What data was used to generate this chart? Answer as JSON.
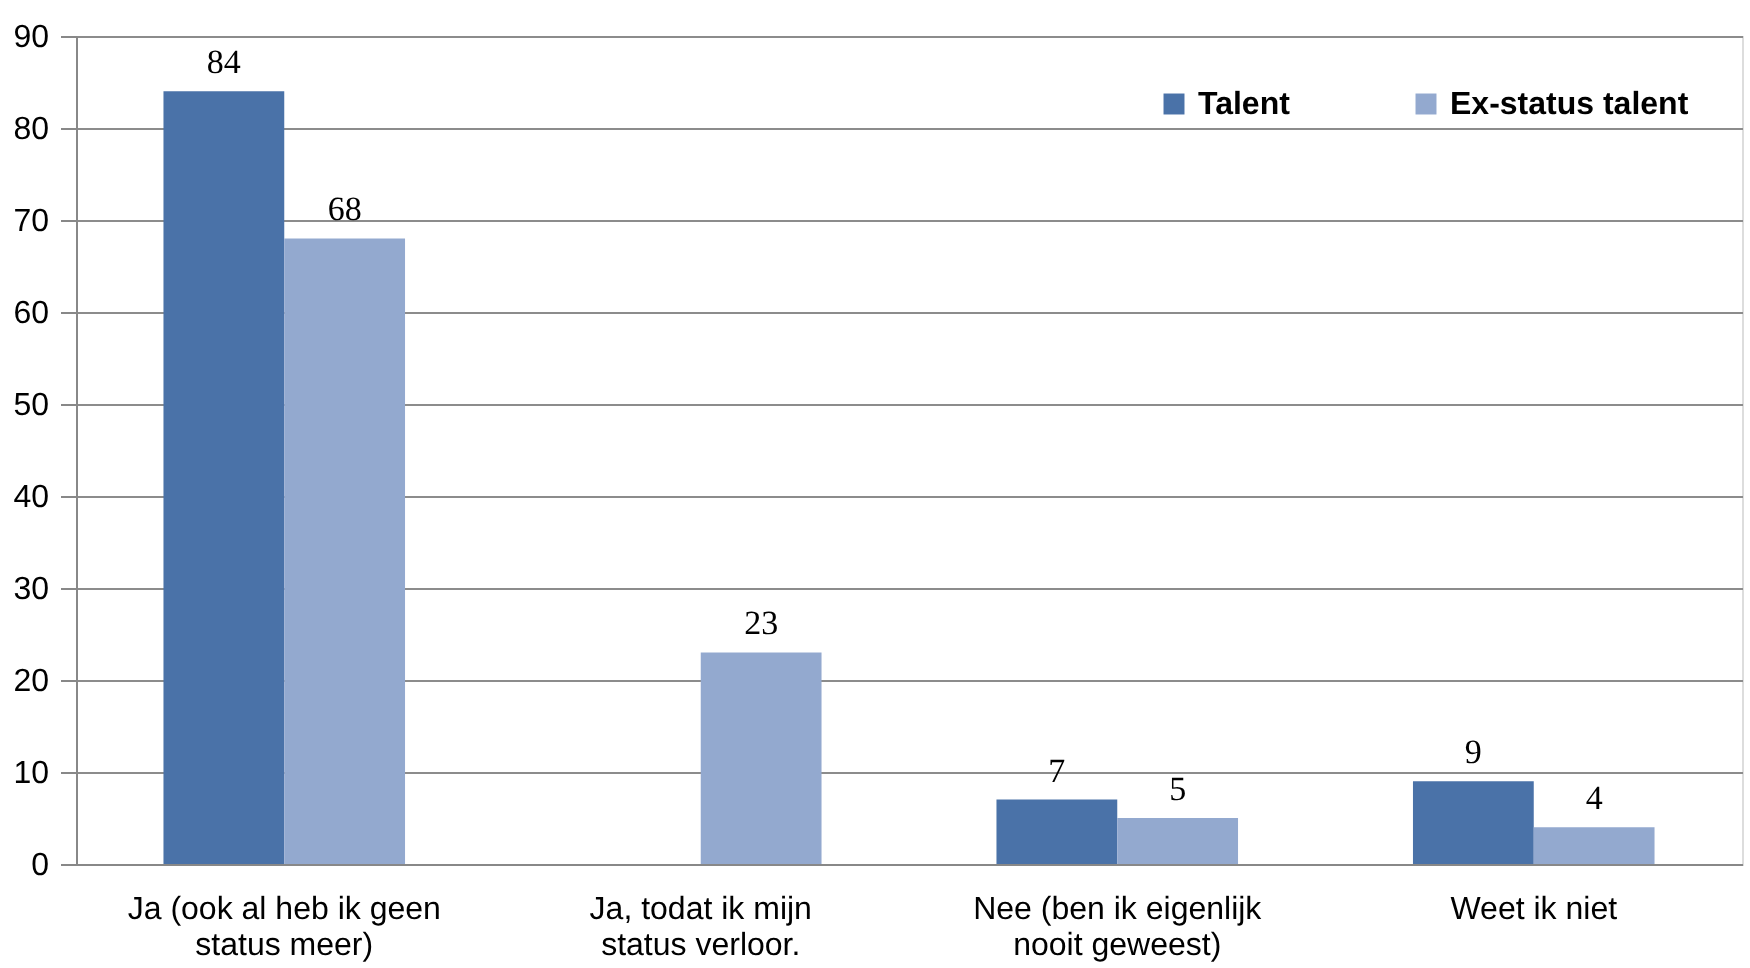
{
  "chart_data": {
    "type": "bar",
    "categories": [
      "Ja (ook al heb ik geen status meer)",
      "Ja, todat ik mijn status verloor.",
      "Nee (ben ik eigenlijk nooit geweest)",
      "Weet ik niet"
    ],
    "series": [
      {
        "name": "Talent",
        "color": "#4a72a8",
        "values": [
          84,
          null,
          7,
          9
        ]
      },
      {
        "name": "Ex-status talent",
        "color": "#93a9cf",
        "values": [
          68,
          23,
          5,
          4
        ]
      }
    ],
    "ylim": [
      0,
      90
    ],
    "yticks": [
      0,
      10,
      20,
      30,
      40,
      50,
      60,
      70,
      80,
      90
    ],
    "grid": "y",
    "legend": "top right",
    "data_labels": true
  }
}
